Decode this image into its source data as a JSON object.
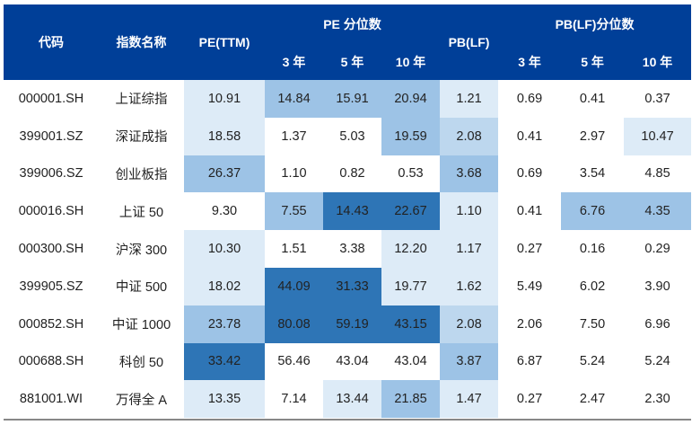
{
  "shade_colors": [
    "#ffffff",
    "#ddebf7",
    "#bdd7ee",
    "#9dc3e6",
    "#2e75b6"
  ],
  "header": {
    "code": "代码",
    "name": "指数名称",
    "pe_ttm": "PE(TTM)",
    "pe_pct": "PE 分位数",
    "pb_lf": "PB(LF)",
    "pb_pct": "PB(LF)分位数",
    "y3": "3 年",
    "y5": "5 年",
    "y10": "10 年"
  },
  "rows": [
    {
      "code": "000001.SH",
      "name": "上证综指",
      "values": [
        "10.91",
        "14.84",
        "15.91",
        "20.94",
        "1.21",
        "0.69",
        "0.41",
        "0.37"
      ],
      "shade": [
        1,
        3,
        3,
        3,
        1,
        0,
        0,
        0
      ]
    },
    {
      "code": "399001.SZ",
      "name": "深证成指",
      "values": [
        "18.58",
        "1.37",
        "5.03",
        "19.59",
        "2.08",
        "0.41",
        "2.97",
        "10.47"
      ],
      "shade": [
        1,
        0,
        0,
        3,
        2,
        0,
        0,
        1
      ]
    },
    {
      "code": "399006.SZ",
      "name": "创业板指",
      "values": [
        "26.37",
        "1.10",
        "0.82",
        "0.53",
        "3.68",
        "0.69",
        "3.54",
        "4.85"
      ],
      "shade": [
        3,
        0,
        0,
        0,
        3,
        0,
        0,
        0
      ]
    },
    {
      "code": "000016.SH",
      "name": "上证 50",
      "values": [
        "9.30",
        "7.55",
        "14.43",
        "22.67",
        "1.10",
        "0.41",
        "6.76",
        "4.35"
      ],
      "shade": [
        0,
        3,
        4,
        4,
        1,
        0,
        3,
        3
      ]
    },
    {
      "code": "000300.SH",
      "name": "沪深 300",
      "values": [
        "10.30",
        "1.51",
        "3.38",
        "12.20",
        "1.17",
        "0.27",
        "0.16",
        "0.29"
      ],
      "shade": [
        1,
        0,
        0,
        1,
        1,
        0,
        0,
        0
      ]
    },
    {
      "code": "399905.SZ",
      "name": "中证 500",
      "values": [
        "18.02",
        "44.09",
        "31.33",
        "19.77",
        "1.62",
        "5.49",
        "6.02",
        "3.90"
      ],
      "shade": [
        1,
        4,
        4,
        1,
        1,
        0,
        0,
        0
      ]
    },
    {
      "code": "000852.SH",
      "name": "中证 1000",
      "values": [
        "23.78",
        "80.08",
        "59.19",
        "43.15",
        "2.08",
        "2.06",
        "7.50",
        "6.96"
      ],
      "shade": [
        3,
        4,
        4,
        4,
        2,
        0,
        0,
        0
      ]
    },
    {
      "code": "000688.SH",
      "name": "科创 50",
      "values": [
        "33.42",
        "56.46",
        "43.04",
        "43.04",
        "3.87",
        "6.87",
        "5.24",
        "5.24"
      ],
      "shade": [
        4,
        0,
        0,
        0,
        3,
        0,
        0,
        0
      ]
    },
    {
      "code": "881001.WI",
      "name": "万得全 A",
      "values": [
        "13.35",
        "7.14",
        "13.44",
        "21.85",
        "1.47",
        "0.27",
        "2.47",
        "2.30"
      ],
      "shade": [
        1,
        0,
        1,
        3,
        1,
        0,
        0,
        0
      ]
    }
  ]
}
